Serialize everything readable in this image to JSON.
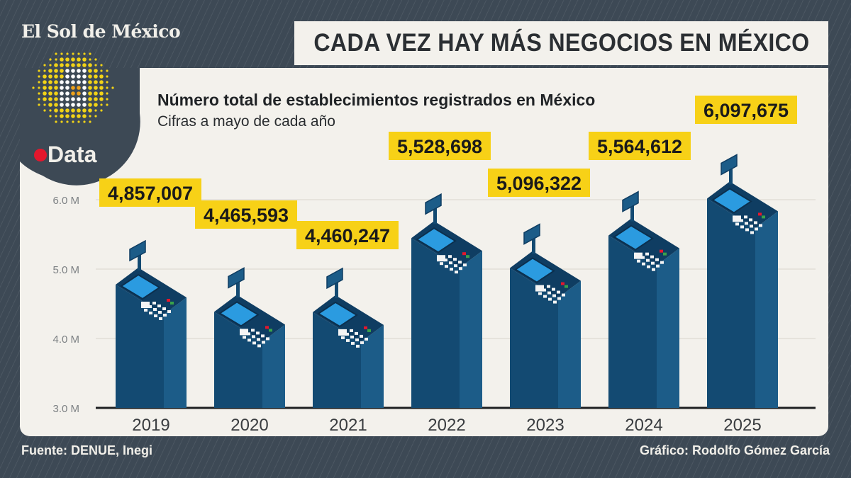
{
  "brand": "El Sol de México",
  "logo_text": "Data",
  "headline": "CADA VEZ HAY MÁS NEGOCIOS EN MÉXICO",
  "chart_data": {
    "type": "bar",
    "title": "Número total de establecimientos registrados en México",
    "subtitle": "Cifras a mayo de cada año",
    "categories": [
      "2019",
      "2020",
      "2021",
      "2022",
      "2023",
      "2024",
      "2025"
    ],
    "values": [
      4857007,
      4465593,
      4460247,
      5528698,
      5096322,
      5564612,
      6097675
    ],
    "data_labels": [
      "4,857,007",
      "4,465,593",
      "4,460,247",
      "5,528,698",
      "5,096,322",
      "5,564,612",
      "6,097,675"
    ],
    "yticks": [
      3.0,
      4.0,
      5.0,
      6.0
    ],
    "ytick_labels": [
      "3.0 M",
      "4.0 M",
      "5.0 M",
      "6.0 M"
    ],
    "ylim": [
      3.0,
      6.5
    ],
    "xlabel": "",
    "ylabel": "",
    "grid": true
  },
  "footer": {
    "source": "Fuente: DENUE, Inegi",
    "credit": "Gráfico: Rodolfo Gómez García"
  },
  "colors": {
    "label_bg": "#f7d117",
    "bar_left": "#134a72",
    "bar_right": "#1c5c88",
    "screen": "#2b9be0"
  }
}
